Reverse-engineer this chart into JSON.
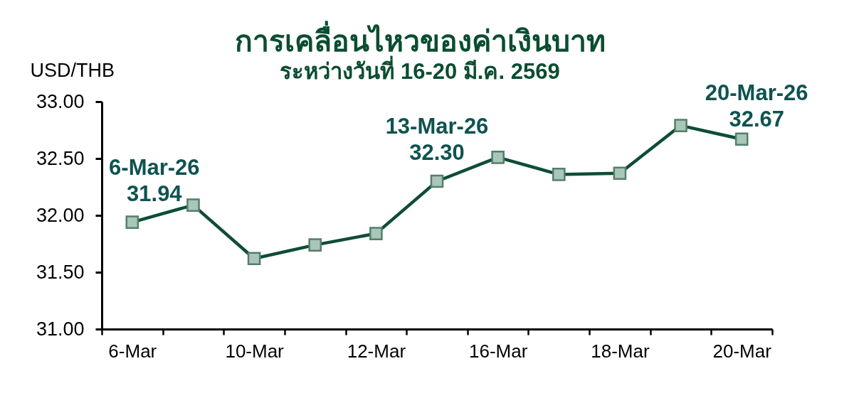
{
  "chart_data": {
    "type": "line",
    "title": "การเคลื่อนไหวของค่าเงินบาท",
    "subtitle": "ระหว่างวันที่ 16-20 มี.ค. 2569",
    "ylabel": "USD/THB",
    "categories": [
      "6-Mar",
      null,
      "10-Mar",
      null,
      "12-Mar",
      null,
      "16-Mar",
      null,
      "18-Mar",
      null,
      "20-Mar"
    ],
    "series": [
      {
        "color": "#0e4d36",
        "values": [
          31.94,
          32.09,
          31.62,
          31.74,
          31.84,
          32.3,
          32.51,
          32.36,
          32.37,
          32.79,
          32.67
        ]
      }
    ],
    "ylim": [
      31,
      33
    ],
    "yticks": [
      {
        "value": 31,
        "label": "31.00"
      },
      {
        "value": 31.5,
        "label": "31.50"
      },
      {
        "value": 32,
        "label": "32.00"
      },
      {
        "value": 32.5,
        "label": "32.50"
      },
      {
        "value": 33,
        "label": "33.00"
      }
    ],
    "annotations": [
      {
        "text": "6-Mar-26\n31.94",
        "x": "6-Mar",
        "y": 31.94
      },
      {
        "text": "13-Mar-26\n32.30",
        "y": 32.3
      },
      {
        "text": "20-Mar-26\n32.67",
        "x": "20-Mar",
        "y": 32.67
      }
    ],
    "grid": false,
    "marker": "square",
    "line_style": "solid"
  }
}
